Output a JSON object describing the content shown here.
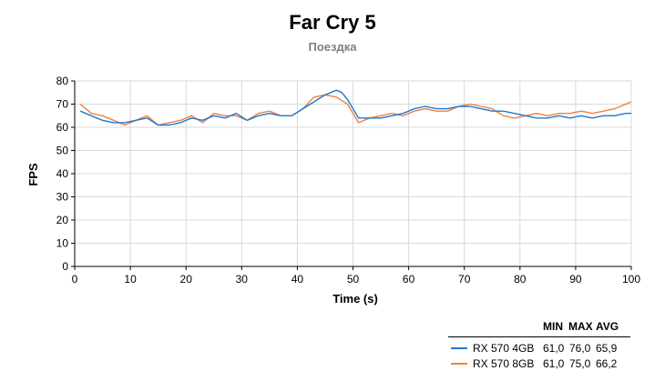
{
  "chart_data": {
    "type": "line",
    "title": "Far Cry 5",
    "subtitle": "Поездка",
    "xlabel": "Time (s)",
    "ylabel": "FPS",
    "xlim": [
      0,
      100
    ],
    "ylim": [
      0,
      80
    ],
    "x_ticks": [
      "0",
      "10",
      "20",
      "30",
      "40",
      "50",
      "60",
      "70",
      "80",
      "90",
      "100"
    ],
    "y_ticks": [
      "0",
      "10",
      "20",
      "30",
      "40",
      "50",
      "60",
      "70",
      "80"
    ],
    "grid": true,
    "legend_position": "bottom-right",
    "legend_headers": [
      "MIN",
      "MAX",
      "AVG"
    ],
    "series": [
      {
        "name": "RX 570 4GB",
        "color": "#1f77d4",
        "min": "61,0",
        "max": "76,0",
        "avg": "65,9",
        "x": [
          1,
          3,
          5,
          7,
          9,
          11,
          13,
          15,
          17,
          19,
          21,
          23,
          25,
          27,
          29,
          31,
          33,
          35,
          37,
          39,
          41,
          43,
          45,
          46,
          47,
          48,
          49,
          51,
          53,
          55,
          57,
          59,
          61,
          63,
          65,
          67,
          69,
          71,
          73,
          75,
          77,
          79,
          81,
          83,
          85,
          87,
          89,
          91,
          93,
          95,
          97,
          99,
          100
        ],
        "y": [
          67,
          65,
          63,
          62,
          62,
          63,
          64,
          61,
          61,
          62,
          64,
          63,
          65,
          64,
          66,
          63,
          65,
          66,
          65,
          65,
          68,
          71,
          74,
          75,
          76,
          75,
          72,
          64,
          64,
          64,
          65,
          66,
          68,
          69,
          68,
          68,
          69,
          69,
          68,
          67,
          67,
          66,
          65,
          64,
          64,
          65,
          64,
          65,
          64,
          65,
          65,
          66,
          66
        ]
      },
      {
        "name": "RX 570 8GB",
        "color": "#f08040",
        "min": "61,0",
        "max": "75,0",
        "avg": "66,2",
        "x": [
          1,
          3,
          5,
          7,
          9,
          11,
          13,
          15,
          17,
          19,
          21,
          23,
          25,
          27,
          29,
          31,
          33,
          35,
          37,
          39,
          41,
          43,
          45,
          47,
          49,
          51,
          53,
          55,
          57,
          59,
          61,
          63,
          65,
          67,
          69,
          71,
          73,
          75,
          77,
          79,
          81,
          83,
          85,
          87,
          89,
          91,
          93,
          95,
          97,
          99,
          100
        ],
        "y": [
          70,
          66,
          65,
          63,
          61,
          63,
          65,
          61,
          62,
          63,
          65,
          62,
          66,
          65,
          65,
          63,
          66,
          67,
          65,
          65,
          68,
          73,
          74,
          73,
          70,
          62,
          64,
          65,
          66,
          65,
          67,
          68,
          67,
          67,
          69,
          70,
          69,
          68,
          65,
          64,
          65,
          66,
          65,
          66,
          66,
          67,
          66,
          67,
          68,
          70,
          71
        ]
      }
    ]
  }
}
